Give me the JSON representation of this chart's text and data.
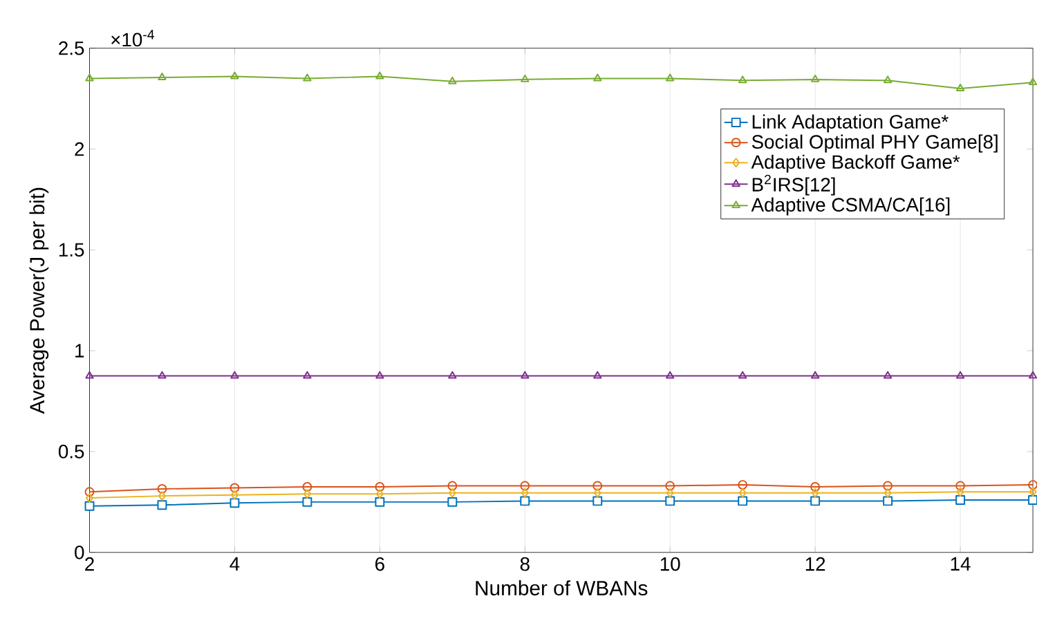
{
  "chart_data": {
    "type": "line",
    "xlabel": "Number of WBANs",
    "ylabel": "Average Power(J per bit)",
    "annotations": [
      "×10$^{-4}$"
    ],
    "x": [
      2,
      3,
      4,
      5,
      6,
      7,
      8,
      9,
      10,
      11,
      12,
      13,
      14,
      15
    ],
    "xlim": [
      2,
      15
    ],
    "xticks": [
      2,
      4,
      6,
      8,
      10,
      12,
      14
    ],
    "ylim": [
      0,
      2.5
    ],
    "yticks": [
      0,
      0.5,
      1,
      1.5,
      2,
      2.5
    ],
    "grid": "x",
    "legend": "right",
    "series": [
      {
        "name": "Link Adaptation Game*",
        "color": "#0072bd",
        "marker": "square",
        "values": [
          0.23,
          0.235,
          0.245,
          0.25,
          0.25,
          0.25,
          0.255,
          0.255,
          0.255,
          0.255,
          0.255,
          0.255,
          0.26,
          0.26
        ]
      },
      {
        "name": "Social Optimal PHY Game[8]",
        "color": "#d95319",
        "marker": "circle",
        "values": [
          0.3,
          0.315,
          0.32,
          0.325,
          0.325,
          0.33,
          0.33,
          0.33,
          0.33,
          0.335,
          0.325,
          0.33,
          0.33,
          0.335
        ]
      },
      {
        "name": "Adaptive Backoff Game*",
        "color": "#edb120",
        "marker": "diamond",
        "values": [
          0.27,
          0.28,
          0.285,
          0.29,
          0.29,
          0.295,
          0.295,
          0.295,
          0.295,
          0.295,
          0.295,
          0.295,
          0.3,
          0.3
        ]
      },
      {
        "name": "B$^{2}$IRS[12]",
        "color": "#7e2f8e",
        "marker": "triangle",
        "values": [
          0.875,
          0.875,
          0.875,
          0.875,
          0.875,
          0.875,
          0.875,
          0.875,
          0.875,
          0.875,
          0.875,
          0.875,
          0.875,
          0.875
        ]
      },
      {
        "name": "Adaptive CSMA/CA[16]",
        "color": "#77ac30",
        "marker": "triangle down",
        "values": [
          2.35,
          2.355,
          2.36,
          2.35,
          2.36,
          2.335,
          2.345,
          2.35,
          2.35,
          2.34,
          2.345,
          2.34,
          2.3,
          2.33
        ]
      }
    ]
  }
}
